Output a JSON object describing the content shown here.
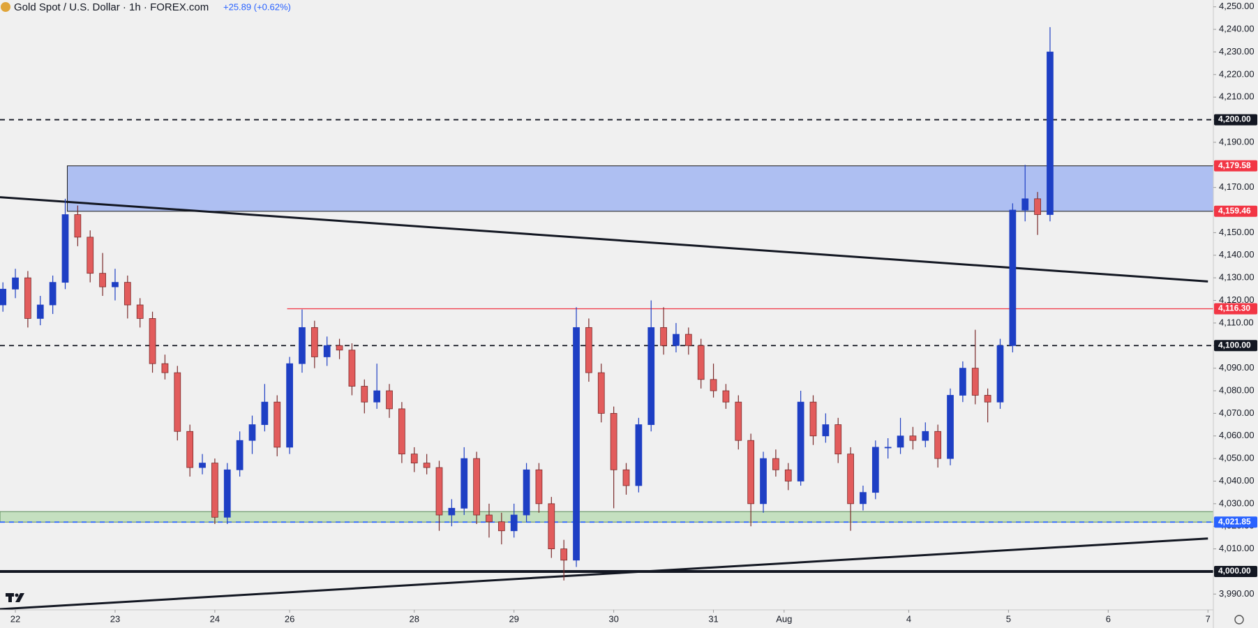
{
  "chart_data": {
    "type": "candlestick",
    "title": "Gold Spot / U.S. Dollar · 1h · FOREX.com",
    "subtitle": "+25.89 (+0.62%)",
    "up_color": "#1e3fc4",
    "down_color": "#e25c5c",
    "xlim": [
      -3.7,
      288.3
    ],
    "ylim": [
      3983,
      4253
    ],
    "xticks": [
      {
        "value": 0,
        "label": "22"
      },
      {
        "value": 24,
        "label": "23"
      },
      {
        "value": 48,
        "label": "24"
      },
      {
        "value": 66,
        "label": "26"
      },
      {
        "value": 96,
        "label": "28"
      },
      {
        "value": 120,
        "label": "29"
      },
      {
        "value": 144,
        "label": "30"
      },
      {
        "value": 168,
        "label": "31"
      },
      {
        "value": 185,
        "label": "Aug"
      },
      {
        "value": 215,
        "label": "4"
      },
      {
        "value": 239,
        "label": "5"
      },
      {
        "value": 263,
        "label": "6"
      },
      {
        "value": 287,
        "label": "7"
      }
    ],
    "yticks": [
      {
        "value": 3990,
        "label": "3,990.00"
      },
      {
        "value": 4000,
        "label": "4,000.00"
      },
      {
        "value": 4010,
        "label": "4,010.00"
      },
      {
        "value": 4020,
        "label": "4,020.00"
      },
      {
        "value": 4030,
        "label": "4,030.00"
      },
      {
        "value": 4040,
        "label": "4,040.00"
      },
      {
        "value": 4050,
        "label": "4,050.00"
      },
      {
        "value": 4060,
        "label": "4,060.00"
      },
      {
        "value": 4070,
        "label": "4,070.00"
      },
      {
        "value": 4080,
        "label": "4,080.00"
      },
      {
        "value": 4090,
        "label": "4,090.00"
      },
      {
        "value": 4100,
        "label": "4,100.00"
      },
      {
        "value": 4110,
        "label": "4,110.00"
      },
      {
        "value": 4120,
        "label": "4,120.00"
      },
      {
        "value": 4130,
        "label": "4,130.00"
      },
      {
        "value": 4140,
        "label": "4,140.00"
      },
      {
        "value": 4150,
        "label": "4,150.00"
      },
      {
        "value": 4160,
        "label": "4,160.00"
      },
      {
        "value": 4170,
        "label": "4,170.00"
      },
      {
        "value": 4180,
        "label": "4,180.00"
      },
      {
        "value": 4190,
        "label": "4,190.00"
      },
      {
        "value": 4200,
        "label": "4,200.00"
      },
      {
        "value": 4210,
        "label": "4,210.00"
      },
      {
        "value": 4220,
        "label": "4,220.00"
      },
      {
        "value": 4230,
        "label": "4,230.00"
      },
      {
        "value": 4240,
        "label": "4,240.00"
      },
      {
        "value": 4250,
        "label": "4,250.00"
      }
    ],
    "x": [
      -3,
      0,
      3,
      6,
      9,
      12,
      15,
      18,
      21,
      24,
      27,
      30,
      33,
      36,
      39,
      42,
      45,
      48,
      51,
      54,
      57,
      60,
      63,
      66,
      69,
      72,
      75,
      78,
      81,
      84,
      87,
      90,
      93,
      96,
      99,
      102,
      105,
      108,
      111,
      114,
      117,
      120,
      123,
      126,
      129,
      132,
      135,
      138,
      141,
      144,
      147,
      150,
      153,
      156,
      159,
      162,
      165,
      168,
      171,
      174,
      177,
      180,
      183,
      186,
      189,
      192,
      195,
      198,
      201,
      204,
      207,
      210,
      213,
      216,
      219,
      222,
      225,
      228,
      231,
      234,
      237,
      240,
      243,
      246,
      249
    ],
    "ohlc": [
      [
        4118,
        4128,
        4115,
        4125
      ],
      [
        4125,
        4134,
        4121,
        4130
      ],
      [
        4130,
        4133,
        4108,
        4112
      ],
      [
        4112,
        4122,
        4109,
        4118
      ],
      [
        4118,
        4131,
        4114,
        4128
      ],
      [
        4128,
        4165,
        4125,
        4158
      ],
      [
        4158,
        4162,
        4144,
        4148
      ],
      [
        4148,
        4151,
        4128,
        4132
      ],
      [
        4132,
        4141,
        4122,
        4126
      ],
      [
        4126,
        4134,
        4120,
        4128
      ],
      [
        4128,
        4131,
        4112,
        4118
      ],
      [
        4118,
        4121,
        4108,
        4112
      ],
      [
        4112,
        4115,
        4088,
        4092
      ],
      [
        4092,
        4096,
        4085,
        4088
      ],
      [
        4088,
        4091,
        4058,
        4062
      ],
      [
        4062,
        4065,
        4042,
        4046
      ],
      [
        4046,
        4052,
        4043,
        4048
      ],
      [
        4048,
        4050,
        4021,
        4024
      ],
      [
        4024,
        4048,
        4021,
        4045
      ],
      [
        4045,
        4062,
        4042,
        4058
      ],
      [
        4058,
        4069,
        4052,
        4065
      ],
      [
        4065,
        4083,
        4062,
        4075
      ],
      [
        4075,
        4078,
        4051,
        4055
      ],
      [
        4055,
        4095,
        4052,
        4092
      ],
      [
        4092,
        4116,
        4088,
        4108
      ],
      [
        4108,
        4111,
        4090,
        4095
      ],
      [
        4095,
        4104,
        4091,
        4100
      ],
      [
        4100,
        4103,
        4094,
        4098
      ],
      [
        4098,
        4101,
        4078,
        4082
      ],
      [
        4082,
        4085,
        4070,
        4075
      ],
      [
        4075,
        4092,
        4072,
        4080
      ],
      [
        4080,
        4083,
        4068,
        4072
      ],
      [
        4072,
        4075,
        4048,
        4052
      ],
      [
        4052,
        4055,
        4044,
        4048
      ],
      [
        4048,
        4052,
        4043,
        4046
      ],
      [
        4046,
        4049,
        4018,
        4025
      ],
      [
        4025,
        4032,
        4020,
        4028
      ],
      [
        4028,
        4055,
        4025,
        4050
      ],
      [
        4050,
        4053,
        4021,
        4025
      ],
      [
        4025,
        4030,
        4015,
        4022
      ],
      [
        4022,
        4026,
        4012,
        4018
      ],
      [
        4018,
        4030,
        4015,
        4025
      ],
      [
        4025,
        4048,
        4022,
        4045
      ],
      [
        4045,
        4048,
        4026,
        4030
      ],
      [
        4030,
        4033,
        4006,
        4010
      ],
      [
        4010,
        4014,
        3996,
        4005
      ],
      [
        4005,
        4117,
        4002,
        4108
      ],
      [
        4108,
        4112,
        4084,
        4088
      ],
      [
        4088,
        4092,
        4066,
        4070
      ],
      [
        4070,
        4073,
        4028,
        4045
      ],
      [
        4045,
        4048,
        4034,
        4038
      ],
      [
        4038,
        4068,
        4035,
        4065
      ],
      [
        4065,
        4120,
        4062,
        4108
      ],
      [
        4108,
        4117,
        4096,
        4100
      ],
      [
        4100,
        4110,
        4097,
        4105
      ],
      [
        4105,
        4108,
        4096,
        4100
      ],
      [
        4100,
        4103,
        4081,
        4085
      ],
      [
        4085,
        4092,
        4077,
        4080
      ],
      [
        4080,
        4083,
        4072,
        4075
      ],
      [
        4075,
        4078,
        4054,
        4058
      ],
      [
        4058,
        4061,
        4020,
        4030
      ],
      [
        4030,
        4053,
        4026,
        4050
      ],
      [
        4050,
        4054,
        4042,
        4045
      ],
      [
        4045,
        4048,
        4036,
        4040
      ],
      [
        4040,
        4080,
        4038,
        4075
      ],
      [
        4075,
        4078,
        4056,
        4060
      ],
      [
        4060,
        4070,
        4057,
        4065
      ],
      [
        4065,
        4068,
        4048,
        4052
      ],
      [
        4052,
        4055,
        4018,
        4030
      ],
      [
        4030,
        4038,
        4027,
        4035
      ],
      [
        4035,
        4058,
        4032,
        4055
      ],
      [
        4055,
        4059,
        4050,
        4055
      ],
      [
        4055,
        4068,
        4052,
        4060
      ],
      [
        4060,
        4064,
        4054,
        4058
      ],
      [
        4058,
        4066,
        4055,
        4062
      ],
      [
        4062,
        4065,
        4046,
        4050
      ],
      [
        4050,
        4081,
        4047,
        4078
      ],
      [
        4078,
        4093,
        4075,
        4090
      ],
      [
        4090,
        4107,
        4074,
        4078
      ],
      [
        4078,
        4081,
        4066,
        4075
      ],
      [
        4075,
        4103,
        4072,
        4100
      ],
      [
        4100,
        4163,
        4097,
        4160
      ],
      [
        4160,
        4180,
        4155,
        4165
      ],
      [
        4165,
        4168,
        4149,
        4158
      ],
      [
        4158,
        4241,
        4155,
        4230
      ]
    ],
    "zones": [
      {
        "from": 4159.46,
        "to": 4179.58,
        "start": 12.5,
        "color": "#aebff2",
        "border": "#1a1a1a"
      },
      {
        "from": 4021.85,
        "to": 4026.5,
        "start": -3.7,
        "color": "#c5e0c0",
        "border": "#5a8a5a"
      }
    ],
    "levels": [
      {
        "value": 4200,
        "label": "4,200.00",
        "style": "dashed",
        "color": "#131722",
        "start": -3.7
      },
      {
        "value": 4179.58,
        "label": "4,179.58",
        "style": "none",
        "color": "#f23645",
        "start": 12.5
      },
      {
        "value": 4159.46,
        "label": "4,159.46",
        "style": "none",
        "color": "#f23645",
        "start": 12.5
      },
      {
        "value": 4116.3,
        "label": "4,116.30",
        "style": "solid",
        "color": "#f23645",
        "start": 65.4
      },
      {
        "value": 4100,
        "label": "4,100.00",
        "style": "dashed",
        "color": "#131722",
        "start": -3.7
      },
      {
        "value": 4021.85,
        "label": "4,021.85",
        "style": "dashed",
        "color": "#2962ff",
        "start": -3.7
      },
      {
        "value": 4000,
        "label": "4,000.00",
        "style": "thick",
        "color": "#131722",
        "start": -3.7
      }
    ],
    "trendlines": [
      {
        "points": [
          [
            -3.7,
            4165.7
          ],
          [
            287,
            4128.4
          ]
        ],
        "color": "#131722"
      },
      {
        "points": [
          [
            -3.7,
            3983.3
          ],
          [
            287,
            4014.6
          ]
        ],
        "color": "#131722"
      }
    ]
  }
}
